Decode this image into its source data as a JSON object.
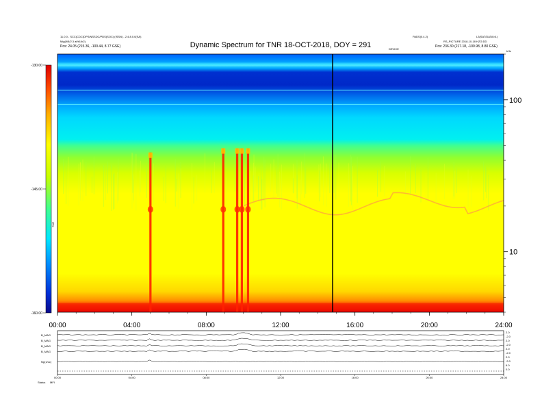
{
  "header": {
    "left_line1": "11.0.0 - SCC(CDC)DPS/NSSDC/PDS(SOC) (ISSN) - 2.4.8.0.0(SA)",
    "left_line2": "Mig(9/8/2.3 at/b1/b2)",
    "left_line3": "Pos:    24.05 (215.36, -100.44, 8.77 GSE)",
    "right_line1a": "PADS(0.4.2)",
    "right_line1b": "L3(SAT/DATA b1)",
    "right_line2": "RS_PICTURE  2018-10-18 HZG:DD",
    "right_line3": "Pos:    236.30 (217.18, -100.98, 8.80 GSE)",
    "mid_small": "DEVICE",
    "corner_small": "kHz",
    "title": "Dynamic Spectrum for TNR 18-OCT-2018, DOY = 291"
  },
  "chart_data": {
    "type": "heatmap",
    "title": "Dynamic Spectrum for TNR 18-OCT-2018, DOY = 291",
    "xlabel": "",
    "ylabel": "",
    "colorbar": {
      "label": "TNR",
      "tick_labels": [
        "-130.00",
        "-145.00",
        "-160.00"
      ],
      "ticks": [
        -130,
        -145,
        -160
      ],
      "range": [
        -160,
        -130
      ],
      "colors": [
        "#0a0a8c",
        "#0040e0",
        "#00a0ff",
        "#00ffff",
        "#40ff80",
        "#c0ff00",
        "#ffff00",
        "#ffb000",
        "#ff6000",
        "#e00000"
      ]
    },
    "x": {
      "tick_labels": [
        "00:00",
        "04:00",
        "08:00",
        "12:00",
        "16:00",
        "20:00",
        "24:00"
      ],
      "range_hours": [
        0,
        24
      ]
    },
    "y": {
      "scale": "log",
      "tick_labels": [
        "100",
        "10"
      ],
      "ticks": [
        100,
        10
      ],
      "range_khz": [
        4,
        200
      ]
    },
    "marker_line_time": "14:48",
    "bursts": [
      {
        "time": "05:00",
        "top_khz": 45
      },
      {
        "time": "08:55",
        "top_khz": 48
      },
      {
        "time": "09:40",
        "top_khz": 48
      },
      {
        "time": "09:55",
        "top_khz": 48
      },
      {
        "time": "10:15",
        "top_khz": 48
      }
    ],
    "bottom_panel": {
      "left_labels": [
        "B_MAG",
        "B_MAG",
        "B_MAG",
        "B_MAG",
        "Np(1/cc)"
      ],
      "bottom_left_a": "Status",
      "bottom_left_b": "MFI",
      "right_labels": [
        "2.0",
        "-2.0",
        "2.0",
        "-2.0",
        "2.0",
        "-2.0",
        "2.0",
        "-2.0",
        "6.0",
        "0.0"
      ],
      "x_tick_labels": [
        "00:00",
        "04:00",
        "08:00",
        "12:00",
        "16:00",
        "20:00",
        "24:00"
      ]
    }
  }
}
